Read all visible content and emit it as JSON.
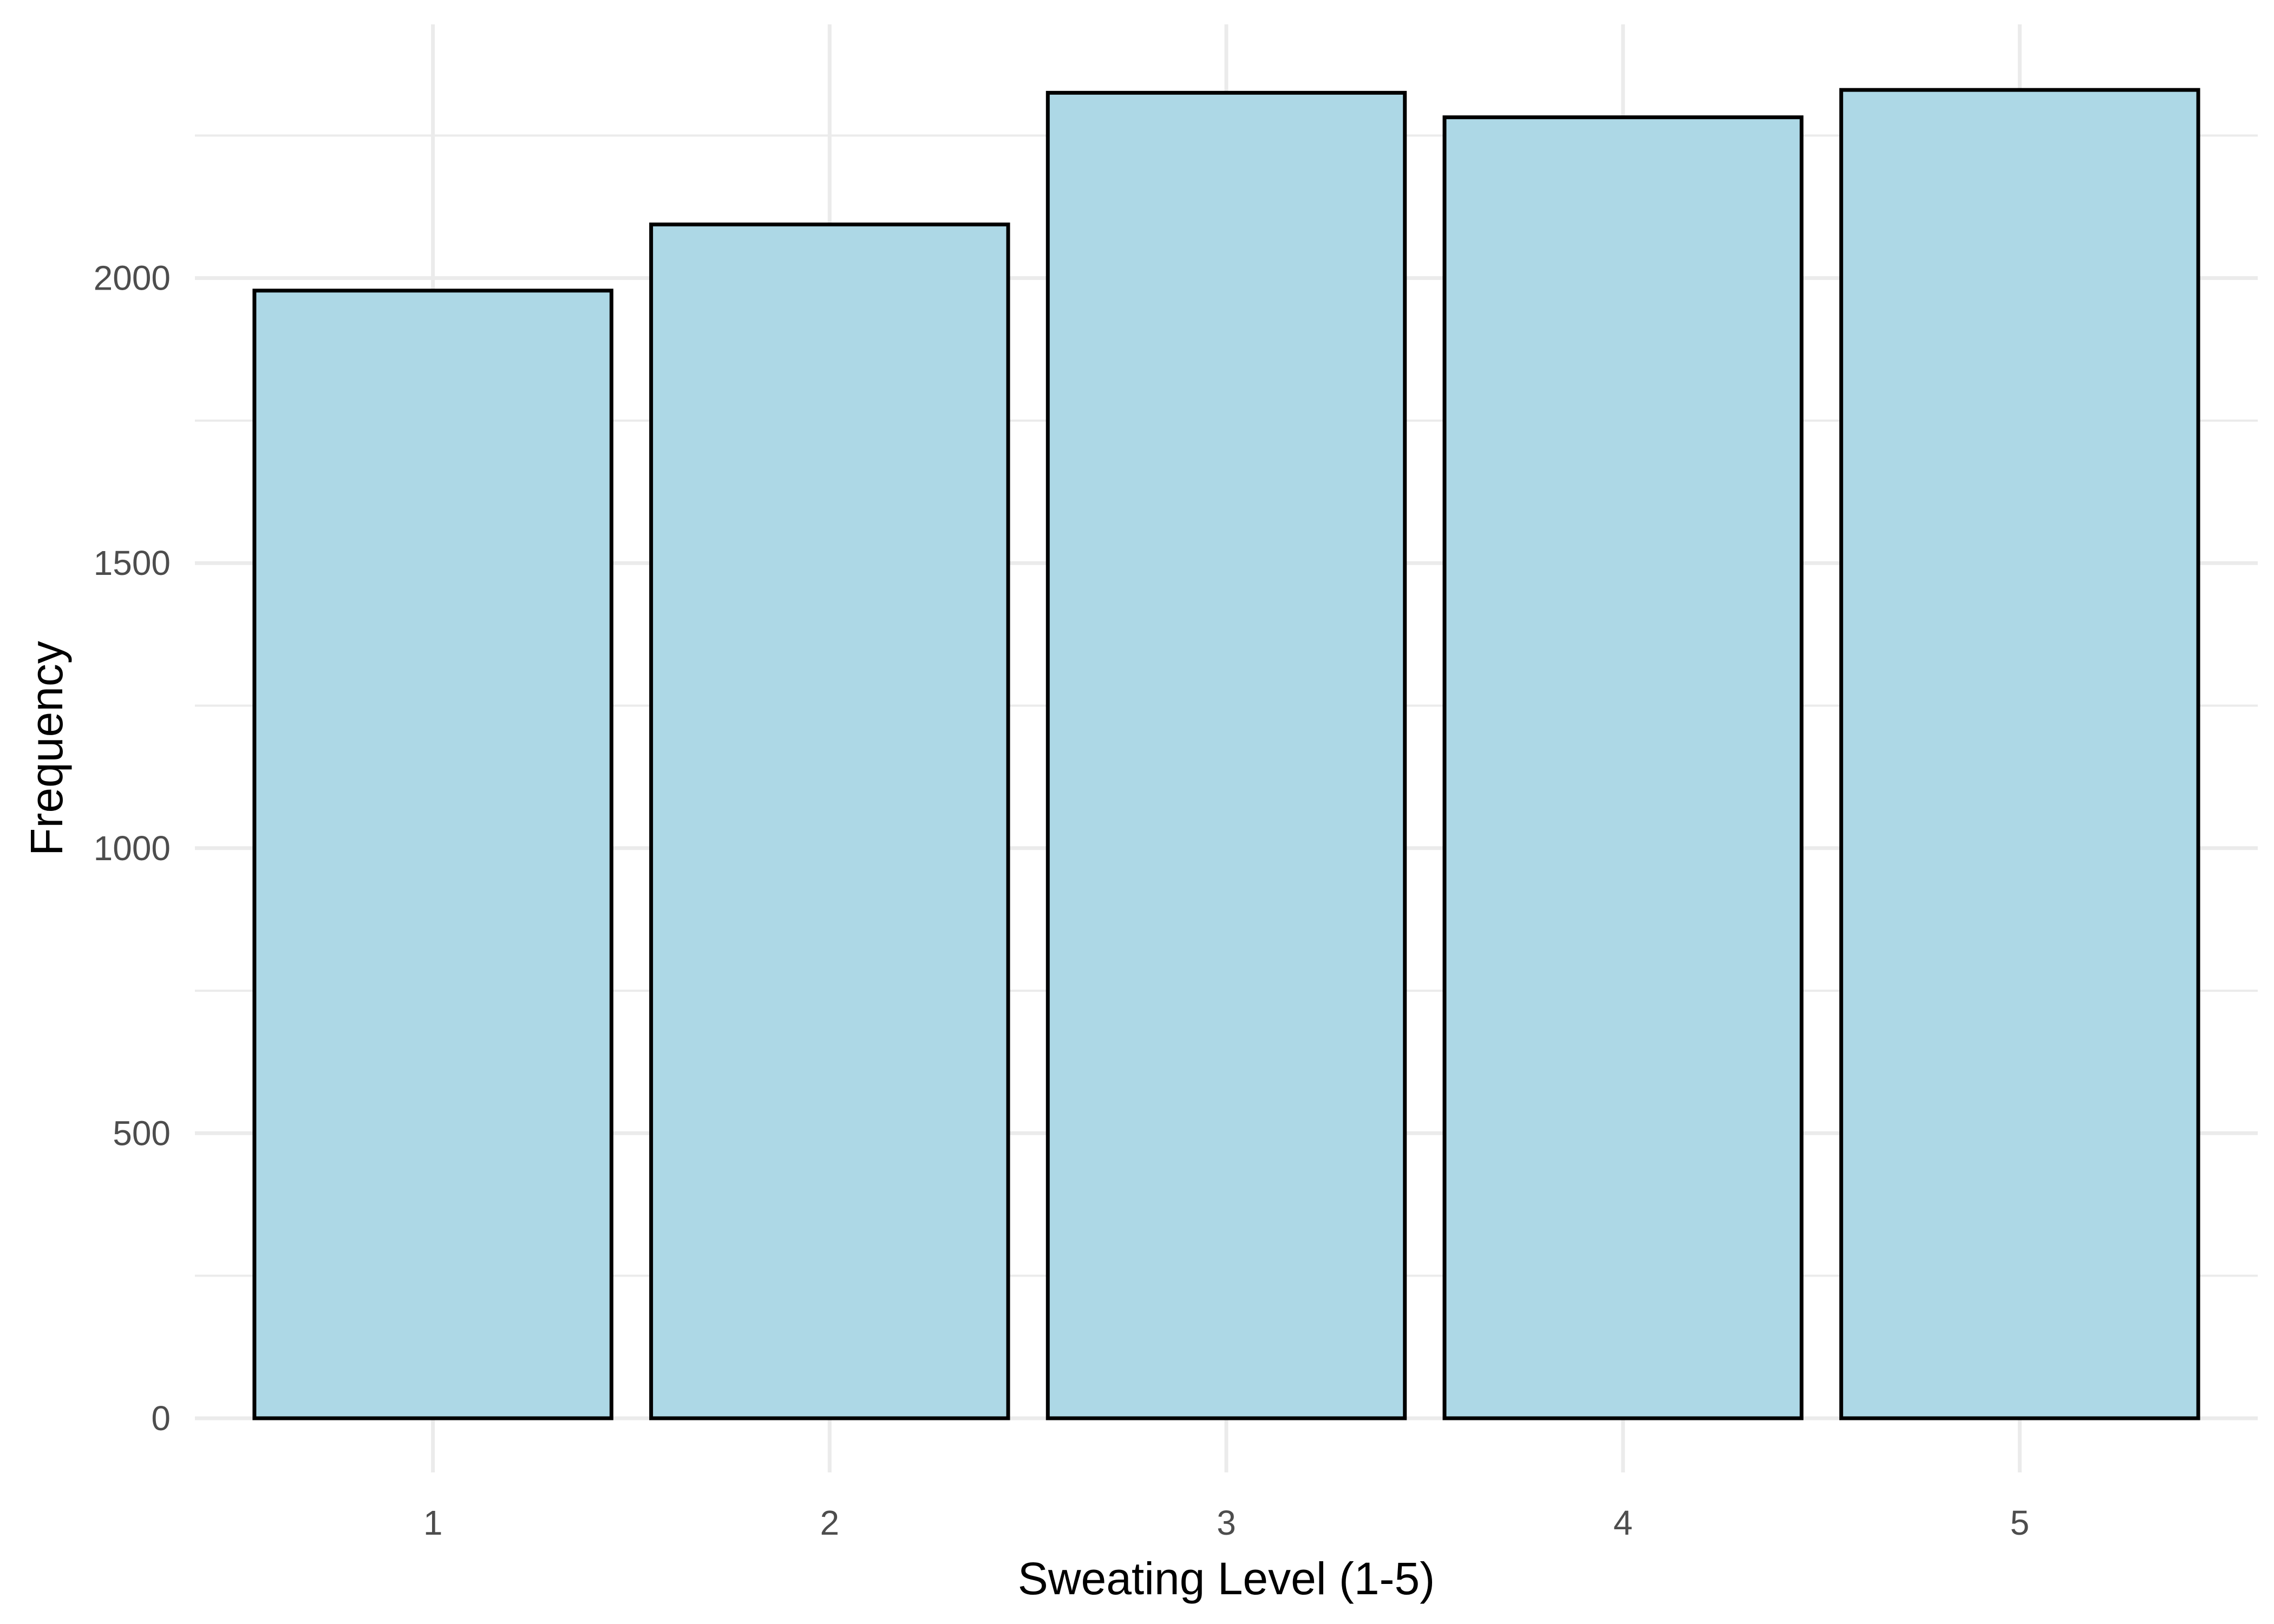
{
  "chart_data": {
    "type": "bar",
    "categories": [
      "1",
      "2",
      "3",
      "4",
      "5"
    ],
    "values": [
      1978,
      2094,
      2325,
      2282,
      2330
    ],
    "title": "",
    "xlabel": "Sweating Level (1-5)",
    "ylabel": "Frequency",
    "ylim": [
      -95,
      2445
    ],
    "yticks": [
      0,
      500,
      1000,
      1500,
      2000
    ],
    "grid": true,
    "colors": {
      "bar_fill": "#add8e6",
      "bar_stroke": "#000000",
      "grid": "#ebebeb"
    }
  }
}
